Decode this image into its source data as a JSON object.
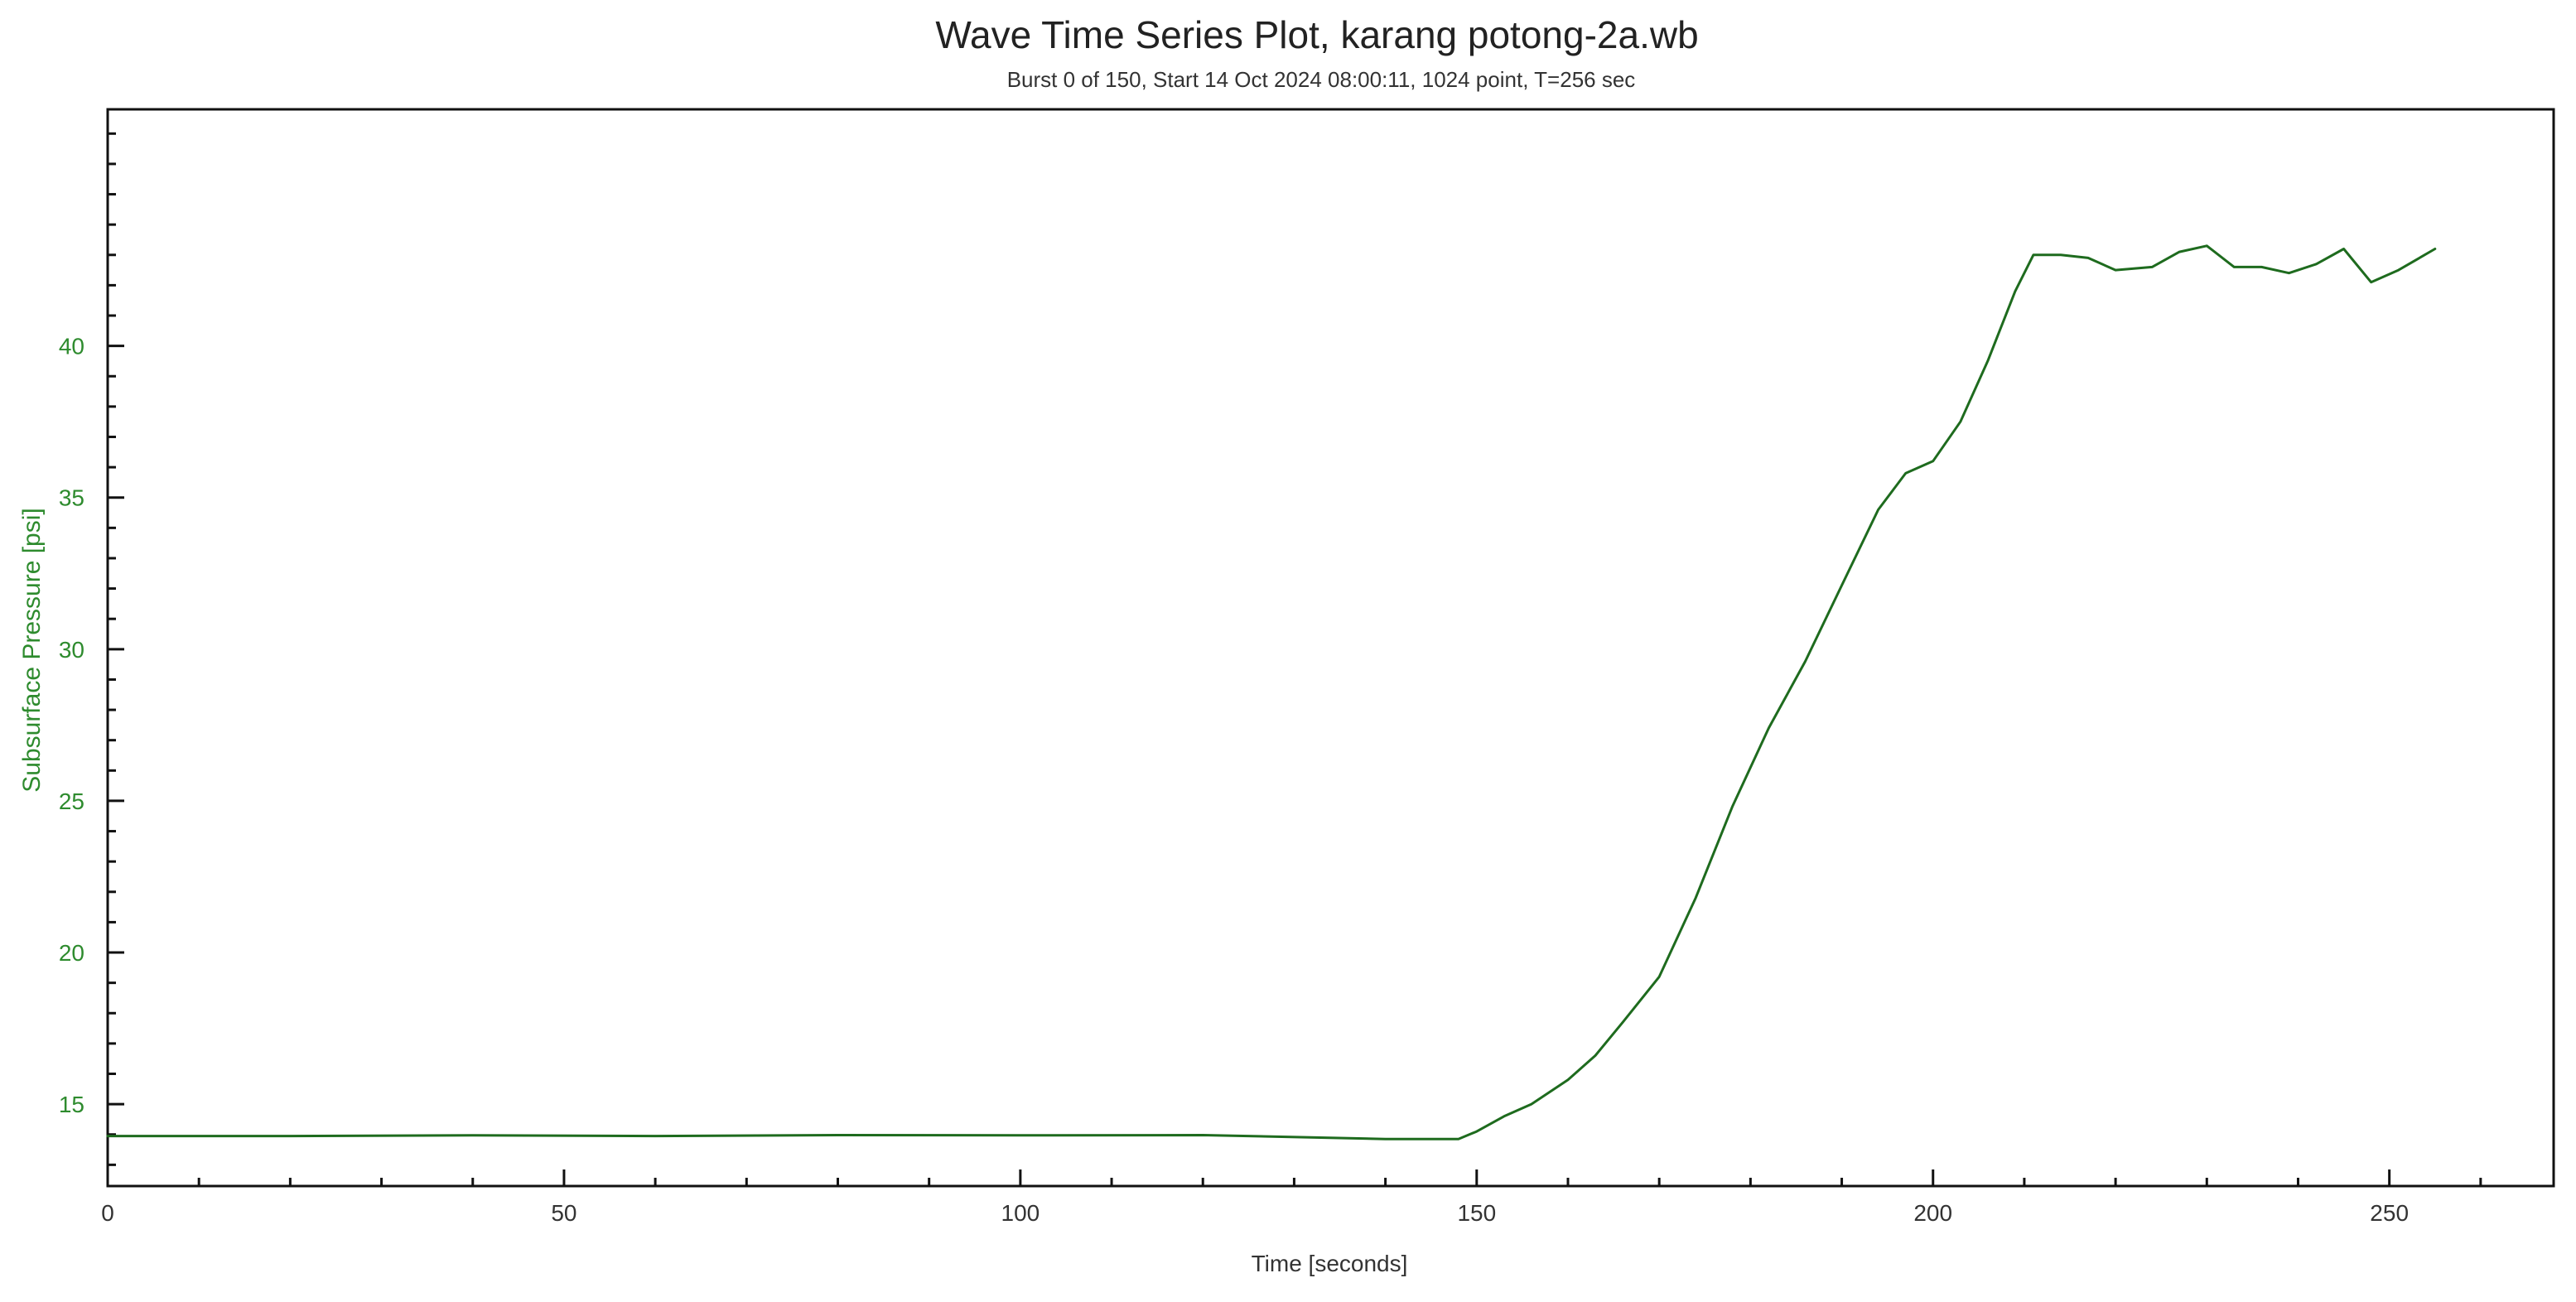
{
  "chart_data": {
    "type": "line",
    "title": "Wave Time Series Plot, karang potong-2a.wb",
    "subtitle": "Burst 0 of 150, Start 14 Oct 2024 08:00:11, 1024 point, T=256 sec",
    "xlabel": "Time [seconds]",
    "ylabel": "Subsurface Pressure [psi]",
    "xlim": [
      0,
      268
    ],
    "ylim": [
      12.3,
      47.8
    ],
    "x_major_ticks": [
      0,
      50,
      100,
      150,
      200,
      250
    ],
    "x_minor_step": 10,
    "y_major_ticks": [
      15,
      20,
      25,
      30,
      35,
      40
    ],
    "y_minor_step": 1,
    "grid": false,
    "colors": {
      "series": "#1e6b1e",
      "ylabel": "#2e8b2e",
      "yticks": "#2e8b2e"
    },
    "series": [
      {
        "x": [
          0,
          20,
          40,
          60,
          80,
          100,
          120,
          140,
          148,
          150,
          153,
          156,
          160,
          163,
          166,
          170,
          174,
          178,
          182,
          186,
          190,
          194,
          197,
          200,
          203,
          206,
          209,
          211,
          214,
          217,
          220,
          224,
          227,
          230,
          233,
          236,
          239,
          242,
          245,
          248,
          251,
          255
        ],
        "y": [
          13.95,
          13.95,
          13.97,
          13.95,
          13.98,
          13.97,
          13.98,
          13.85,
          13.85,
          14.1,
          14.6,
          15.0,
          15.8,
          16.6,
          17.7,
          19.2,
          21.8,
          24.8,
          27.4,
          29.6,
          32.1,
          34.6,
          35.8,
          36.2,
          37.5,
          39.5,
          41.8,
          43.0,
          43.0,
          42.9,
          42.5,
          42.6,
          43.1,
          43.3,
          42.6,
          42.6,
          42.4,
          42.7,
          43.2,
          42.1,
          42.5,
          43.2
        ]
      }
    ]
  }
}
